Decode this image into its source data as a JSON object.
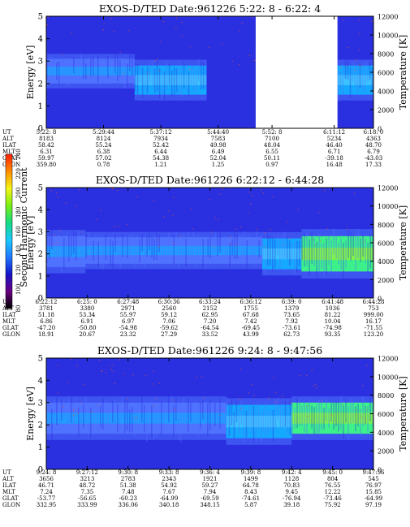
{
  "colors": {
    "background": "#2a2fe0",
    "band_low": "#4f72ff",
    "band_mid": "#14a8ff",
    "band_high": "#3cf08a",
    "noise": "#e0523a"
  },
  "colorbar": {
    "label": "Second Harmonic Current",
    "ticks": [
      "80",
      "100",
      "120",
      "140",
      "160",
      "180",
      "200",
      "220",
      "240"
    ],
    "stops": [
      "#000000",
      "#6a0080",
      "#1414c8",
      "#1e78ff",
      "#19c8ff",
      "#14dc82",
      "#78f014",
      "#f5f514",
      "#ff8c00",
      "#ff1e00"
    ]
  },
  "row_labels": [
    "UT",
    "ALT",
    "ILAT",
    "MLT",
    "GLAT",
    "GLON"
  ],
  "chart_data": [
    {
      "type": "heatmap",
      "title": "EXOS-D/TED",
      "date_label": "Date:961226",
      "time_range": "5:22: 8 - 6:22: 4",
      "ylabel": "Energy [eV]",
      "ylabel_right": "Temperature [K]",
      "ylim": [
        0,
        5
      ],
      "ylim_right": [
        0,
        12000
      ],
      "yticks": [
        "0",
        "1",
        "2",
        "3",
        "4",
        "5"
      ],
      "yticks_right": [
        "0",
        "2000",
        "4000",
        "6000",
        "8000",
        "10000",
        "12000"
      ],
      "data_gap": [
        0.64,
        0.89
      ],
      "band": {
        "segments": [
          {
            "t": [
              0.0,
              0.27
            ],
            "center": 2.55,
            "width": 0.55,
            "level": "low"
          },
          {
            "t": [
              0.27,
              0.49
            ],
            "center": 2.15,
            "width": 0.65,
            "level": "mid"
          },
          {
            "t": [
              0.89,
              1.0
            ],
            "center": 2.15,
            "width": 0.65,
            "level": "mid"
          }
        ]
      },
      "columns": [
        {
          "UT": "5:22: 8",
          "ALT": "8183",
          "ILAT": "58.42",
          "MLT": "6.31",
          "GLAT": "59.97",
          "GLON": "359.80"
        },
        {
          "UT": "5:29:44",
          "ALT": "8124",
          "ILAT": "55.24",
          "MLT": "6.38",
          "GLAT": "57.02",
          "GLON": "0.78"
        },
        {
          "UT": "5:37:12",
          "ALT": "7934",
          "ILAT": "52.42",
          "MLT": "6.44",
          "GLAT": "54.38",
          "GLON": "1.21"
        },
        {
          "UT": "5:44:40",
          "ALT": "7583",
          "ILAT": "49.98",
          "MLT": "6.49",
          "GLAT": "52.04",
          "GLON": "1.25"
        },
        {
          "UT": "5:52: 8",
          "ALT": "7100",
          "ILAT": "48.04",
          "MLT": "6.55",
          "GLAT": "50.11",
          "GLON": "0.97"
        },
        {
          "UT": "6:11:12",
          "ALT": "5234",
          "ILAT": "46.40",
          "MLT": "6.71",
          "GLAT": "-39.18",
          "GLON": "16.48"
        },
        {
          "UT": "6:18: 0",
          "ALT": "4363",
          "ILAT": "48.70",
          "MLT": "6.79",
          "GLAT": "-43.03",
          "GLON": "17.33"
        }
      ],
      "column_positions": [
        0.0,
        0.175,
        0.35,
        0.525,
        0.69,
        0.88,
        1.0
      ]
    },
    {
      "type": "heatmap",
      "title": "EXOS-D/TED",
      "date_label": "Date:961226",
      "time_range": "6:22:12 - 6:44:28",
      "ylabel": "Energy [eV]",
      "ylabel_right": "Temperature [K]",
      "ylim": [
        0,
        5
      ],
      "ylim_right": [
        0,
        12000
      ],
      "yticks": [
        "0",
        "1",
        "2",
        "3",
        "4",
        "5"
      ],
      "yticks_right": [
        "0",
        "2000",
        "4000",
        "6000",
        "8000",
        "10000",
        "12000"
      ],
      "band": {
        "segments": [
          {
            "t": [
              0.0,
              0.12
            ],
            "center": 2.1,
            "width": 0.7,
            "level": "low"
          },
          {
            "t": [
              0.12,
              0.66
            ],
            "center": 2.15,
            "width": 0.6,
            "level": "low"
          },
          {
            "t": [
              0.66,
              0.78
            ],
            "center": 2.0,
            "width": 0.7,
            "level": "mid"
          },
          {
            "t": [
              0.78,
              1.0
            ],
            "center": 2.0,
            "width": 0.8,
            "level": "high"
          }
        ]
      },
      "columns": [
        {
          "UT": "6:22:12",
          "ALT": "3781",
          "ILAT": "51.18",
          "MLT": "6.86",
          "GLAT": "-47.20",
          "GLON": "18.91"
        },
        {
          "UT": "6:25: 0",
          "ALT": "3380",
          "ILAT": "53.34",
          "MLT": "6.91",
          "GLAT": "-50.80",
          "GLON": "20.67"
        },
        {
          "UT": "6:27:48",
          "ALT": "2971",
          "ILAT": "55.97",
          "MLT": "6.97",
          "GLAT": "-54.98",
          "GLON": "23.32"
        },
        {
          "UT": "6:30:36",
          "ALT": "2560",
          "ILAT": "59.12",
          "MLT": "7.06",
          "GLAT": "-59.62",
          "GLON": "27.29"
        },
        {
          "UT": "6:33:24",
          "ALT": "2152",
          "ILAT": "62.95",
          "MLT": "7.20",
          "GLAT": "-64.54",
          "GLON": "33.52"
        },
        {
          "UT": "6:36:12",
          "ALT": "1755",
          "ILAT": "67.68",
          "MLT": "7.42",
          "GLAT": "-69.45",
          "GLON": "43.99"
        },
        {
          "UT": "6:39: 0",
          "ALT": "1379",
          "ILAT": "73.65",
          "MLT": "7.92",
          "GLAT": "-73.61",
          "GLON": "62.73"
        },
        {
          "UT": "6:41:48",
          "ALT": "1036",
          "ILAT": "81.22",
          "MLT": "10.04",
          "GLAT": "-74.98",
          "GLON": "93.35"
        },
        {
          "UT": "6:44:28",
          "ALT": "753",
          "ILAT": "999.00",
          "MLT": "16.17",
          "GLAT": "-71.55",
          "GLON": "123.20"
        }
      ],
      "column_positions": [
        0.0,
        0.125,
        0.25,
        0.375,
        0.5,
        0.625,
        0.75,
        0.875,
        1.0
      ]
    },
    {
      "type": "heatmap",
      "title": "EXOS-D/TED",
      "date_label": "Date:961226",
      "time_range": "9:24: 8 - 9:47:56",
      "ylabel": "Energy [eV]",
      "ylabel_right": "Temperature [K]",
      "ylim": [
        0,
        5
      ],
      "ylim_right": [
        0,
        12000
      ],
      "yticks": [
        "0",
        "1",
        "2",
        "3",
        "4",
        "5"
      ],
      "yticks_right": [
        "0",
        "2000",
        "4000",
        "6000",
        "8000",
        "10000",
        "12000"
      ],
      "band": {
        "segments": [
          {
            "t": [
              0.0,
              0.55
            ],
            "center": 2.3,
            "width": 0.7,
            "level": "low"
          },
          {
            "t": [
              0.55,
              0.75
            ],
            "center": 2.15,
            "width": 0.75,
            "level": "mid"
          },
          {
            "t": [
              0.75,
              1.0
            ],
            "center": 2.3,
            "width": 0.7,
            "level": "high"
          }
        ]
      },
      "columns": [
        {
          "UT": "9:24: 8",
          "ALT": "3656",
          "ILAT": "46.71",
          "MLT": "7.24",
          "GLAT": "-53.77",
          "GLON": "332.95"
        },
        {
          "UT": "9:27:12",
          "ALT": "3213",
          "ILAT": "48.72",
          "MLT": "7.35",
          "GLAT": "-56.65",
          "GLON": "333.99"
        },
        {
          "UT": "9:30: 8",
          "ALT": "2783",
          "ILAT": "51.38",
          "MLT": "7.48",
          "GLAT": "-60.23",
          "GLON": "336.06"
        },
        {
          "UT": "9:33: 8",
          "ALT": "2343",
          "ILAT": "54.92",
          "MLT": "7.67",
          "GLAT": "-64.99",
          "GLON": "340.18"
        },
        {
          "UT": "9:36: 4",
          "ALT": "1921",
          "ILAT": "59.27",
          "MLT": "7.94",
          "GLAT": "-69.59",
          "GLON": "348.15"
        },
        {
          "UT": "9:39: 8",
          "ALT": "1499",
          "ILAT": "64.78",
          "MLT": "8.43",
          "GLAT": "-74.61",
          "GLON": "5.87"
        },
        {
          "UT": "9:42: 4",
          "ALT": "1128",
          "ILAT": "70.83",
          "MLT": "9.45",
          "GLAT": "-76.94",
          "GLON": "39.18"
        },
        {
          "UT": "9:45: 0",
          "ALT": "804",
          "ILAT": "76.55",
          "MLT": "12.22",
          "GLAT": "-73.46",
          "GLON": "75.92"
        },
        {
          "UT": "9:47:56",
          "ALT": "545",
          "ILAT": "76.97",
          "MLT": "15.85",
          "GLAT": "-64.99",
          "GLON": "97.19"
        }
      ],
      "column_positions": [
        0.0,
        0.125,
        0.25,
        0.375,
        0.5,
        0.625,
        0.75,
        0.875,
        1.0
      ]
    }
  ]
}
